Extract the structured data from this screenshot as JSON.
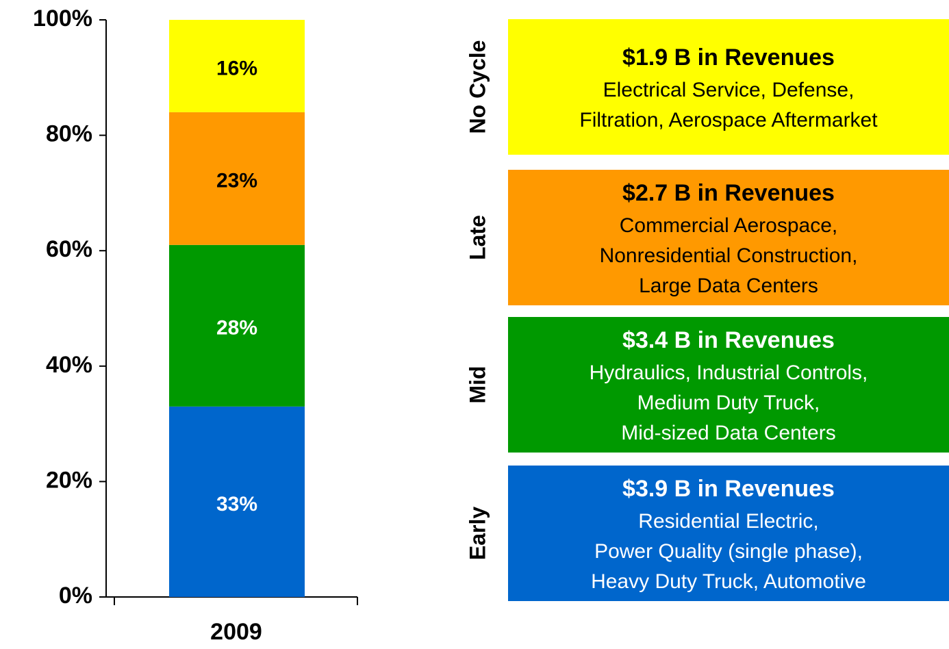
{
  "chart_data": {
    "type": "stacked_bar",
    "categories": [
      "2009"
    ],
    "series": [
      {
        "name": "Early",
        "color": "#0066cc",
        "label_color": "#ffffff",
        "values": [
          33
        ],
        "value_labels": [
          "33%"
        ]
      },
      {
        "name": "Mid",
        "color": "#009900",
        "label_color": "#ffffff",
        "values": [
          28
        ],
        "value_labels": [
          "28%"
        ]
      },
      {
        "name": "Late",
        "color": "#ff9900",
        "label_color": "#000000",
        "values": [
          23
        ],
        "value_labels": [
          "23%"
        ]
      },
      {
        "name": "No Cycle",
        "color": "#ffff00",
        "label_color": "#000000",
        "values": [
          16
        ],
        "value_labels": [
          "16%"
        ]
      }
    ],
    "boxes": [
      {
        "heading": "$3.9 B in Revenues",
        "lines": [
          "Residential Electric,",
          "Power Quality (single phase),",
          "Heavy Duty Truck, Automotive"
        ]
      },
      {
        "heading": "$3.4 B in Revenues",
        "lines": [
          "Hydraulics, Industrial Controls,",
          "Medium Duty Truck,",
          "Mid-sized Data Centers"
        ]
      },
      {
        "heading": "$2.7 B in Revenues",
        "lines": [
          "Commercial Aerospace,",
          "Nonresidential Construction,",
          "Large Data Centers"
        ]
      },
      {
        "heading": "$1.9 B in Revenues",
        "lines": [
          "Electrical Service, Defense,",
          "Filtration, Aerospace Aftermarket"
        ]
      }
    ],
    "ylim": [
      0,
      100
    ],
    "yticks": [
      {
        "value": 0,
        "label": "0%"
      },
      {
        "value": 20,
        "label": "20%"
      },
      {
        "value": 40,
        "label": "40%"
      },
      {
        "value": 60,
        "label": "60%"
      },
      {
        "value": 80,
        "label": "80%"
      },
      {
        "value": 100,
        "label": "100%"
      }
    ]
  }
}
